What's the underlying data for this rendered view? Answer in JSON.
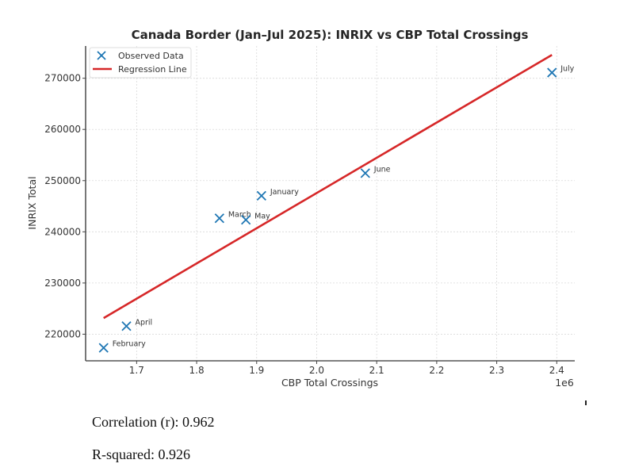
{
  "chart_data": {
    "type": "scatter",
    "title": "Canada Border (Jan–Jul 2025): INRIX vs CBP Total Crossings",
    "xlabel": "CBP Total Crossings",
    "ylabel": "INRIX Total",
    "x_offset_label": "1e6",
    "x_scale": 1000000,
    "xlim": [
      1.615,
      2.43
    ],
    "ylim": [
      214800,
      276300
    ],
    "x_ticks": [
      1.7,
      1.8,
      1.9,
      2.0,
      2.1,
      2.2,
      2.3,
      2.4
    ],
    "x_tick_labels": [
      "1.7",
      "1.8",
      "1.9",
      "2.0",
      "2.1",
      "2.2",
      "2.3",
      "2.4"
    ],
    "y_ticks": [
      220000,
      230000,
      240000,
      250000,
      260000,
      270000
    ],
    "y_tick_labels": [
      "220000",
      "230000",
      "240000",
      "250000",
      "260000",
      "270000"
    ],
    "grid": true,
    "legend_position": "top-left",
    "series": [
      {
        "name": "Observed Data",
        "kind": "scatter",
        "marker": "x",
        "color": "#1f77b4",
        "points": [
          {
            "label": "January",
            "x": 1.908,
            "y": 247040
          },
          {
            "label": "February",
            "x": 1.645,
            "y": 217330
          },
          {
            "label": "March",
            "x": 1.838,
            "y": 242640
          },
          {
            "label": "April",
            "x": 1.683,
            "y": 221570
          },
          {
            "label": "May",
            "x": 1.882,
            "y": 242330
          },
          {
            "label": "June",
            "x": 2.081,
            "y": 251450
          },
          {
            "label": "July",
            "x": 2.392,
            "y": 271100
          }
        ]
      },
      {
        "name": "Regression Line",
        "kind": "line",
        "color": "#d62728",
        "x": [
          1.645,
          2.392
        ],
        "y": [
          223150,
          274560
        ]
      }
    ]
  },
  "stats": {
    "correlation": "Correlation (r): 0.962",
    "r_squared": "R-squared: 0.926"
  }
}
